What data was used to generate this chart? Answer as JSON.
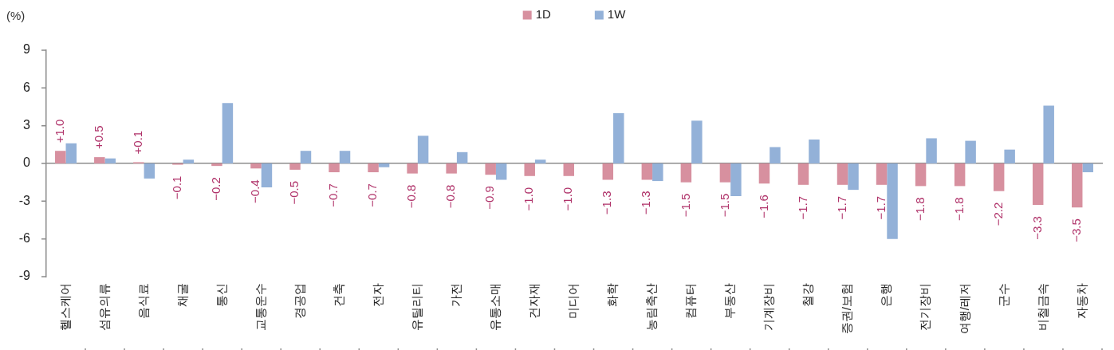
{
  "chart_data": {
    "type": "bar",
    "ylabel": "(%)",
    "categories": [
      "헬스케어",
      "섬유의류",
      "음식료",
      "채굴",
      "통신",
      "교통운수",
      "경공업",
      "건축",
      "전자",
      "유틸리티",
      "가전",
      "유통소매",
      "건자재",
      "미디어",
      "화학",
      "농림축산",
      "컴퓨터",
      "부동산",
      "기계장비",
      "철강",
      "증권/보험",
      "은행",
      "전기장비",
      "여행/레저",
      "군수",
      "비철금속",
      "자동차"
    ],
    "series": [
      {
        "name": "1D",
        "color": "#d7909f",
        "values": [
          1.0,
          0.5,
          0.1,
          -0.1,
          -0.2,
          -0.4,
          -0.5,
          -0.7,
          -0.7,
          -0.8,
          -0.8,
          -0.9,
          -1.0,
          -1.0,
          -1.3,
          -1.3,
          -1.5,
          -1.5,
          -1.6,
          -1.7,
          -1.7,
          -1.7,
          -1.8,
          -1.8,
          -2.2,
          -3.3,
          -3.5
        ],
        "value_labels": [
          "+1.0",
          "+0.5",
          "+0.1",
          "−0.1",
          "−0.2",
          "−0.4",
          "−0.5",
          "−0.7",
          "−0.7",
          "−0.8",
          "−0.8",
          "−0.9",
          "−1.0",
          "−1.0",
          "−1.3",
          "−1.3",
          "−1.5",
          "−1.5",
          "−1.6",
          "−1.7",
          "−1.7",
          "−1.7",
          "−1.8",
          "−1.8",
          "−2.2",
          "−3.3",
          "−3.5"
        ]
      },
      {
        "name": "1W",
        "color": "#93b1d8",
        "values": [
          1.6,
          0.4,
          -1.2,
          0.3,
          4.8,
          -1.9,
          1.0,
          1.0,
          -0.3,
          2.2,
          0.9,
          -1.3,
          0.3,
          0,
          4.0,
          -1.4,
          3.4,
          -2.6,
          1.3,
          1.9,
          -2.1,
          -6.0,
          2.0,
          1.8,
          1.1,
          4.6,
          -0.7
        ]
      }
    ],
    "ylim": [
      -9,
      9
    ],
    "yticks": [
      -9,
      -6,
      -3,
      0,
      3,
      6,
      9
    ],
    "legend": "top"
  }
}
